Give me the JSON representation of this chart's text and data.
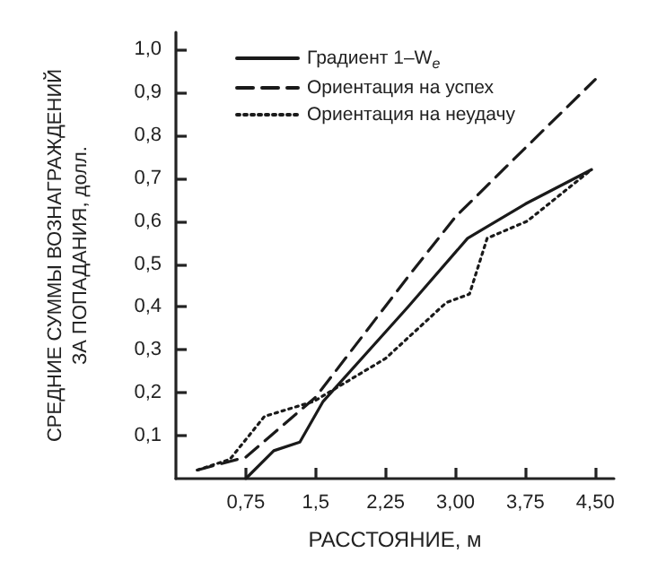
{
  "chart_data": {
    "type": "line",
    "xlabel": "РАССТОЯНИЕ, м",
    "ylabel": "СРЕДНИЕ СУММЫ ВОЗНАГРАЖДЕНИЙ\nЗА ПОПАДАНИЯ, долл.",
    "xlim": [
      0,
      4.7
    ],
    "ylim": [
      0,
      1.04
    ],
    "xticks": [
      {
        "value": 0.75,
        "label": "0,75"
      },
      {
        "value": 1.5,
        "label": "1,5"
      },
      {
        "value": 2.25,
        "label": "2,25"
      },
      {
        "value": 3,
        "label": "3,00"
      },
      {
        "value": 3.75,
        "label": "3,75"
      },
      {
        "value": 4.5,
        "label": "4,50"
      }
    ],
    "yticks": [
      {
        "value": 0.1,
        "label": "0,1"
      },
      {
        "value": 0.2,
        "label": "0,2"
      },
      {
        "value": 0.3,
        "label": "0,3"
      },
      {
        "value": 0.4,
        "label": "0,4"
      },
      {
        "value": 0.5,
        "label": "0,5"
      },
      {
        "value": 0.6,
        "label": "0,6"
      },
      {
        "value": 0.7,
        "label": "0,7"
      },
      {
        "value": 0.8,
        "label": "0,8"
      },
      {
        "value": 0.9,
        "label": "0,9"
      },
      {
        "value": 1.0,
        "label": "1,0"
      }
    ],
    "grid": false,
    "legend": "top left",
    "marker": "none",
    "series": [
      {
        "name": "Градиент 1–W$_{e}$",
        "color": "#1a1a1a",
        "line_style": "solid",
        "x": [
          0.75,
          1.05,
          1.33,
          1.58,
          2.49,
          3.13,
          3.75,
          4.46
        ],
        "values": [
          0,
          0.065,
          0.085,
          0.18,
          0.4,
          0.56,
          0.64,
          0.72
        ]
      },
      {
        "name": "Ориентация на успех",
        "color": "#1a1a1a",
        "line_style": "dashed",
        "x": [
          0.23,
          0.75,
          1.5,
          2.49,
          3.0,
          3.7,
          4.5
        ],
        "values": [
          0.02,
          0.05,
          0.19,
          0.47,
          0.61,
          0.76,
          0.93
        ]
      },
      {
        "name": "Ориентация на неудачу",
        "color": "#1a1a1a",
        "line_style": "dotted",
        "x": [
          0.23,
          0.58,
          0.95,
          1.48,
          2.25,
          2.9,
          3.15,
          3.34,
          3.77,
          4.46
        ],
        "values": [
          0.02,
          0.045,
          0.145,
          0.18,
          0.28,
          0.41,
          0.43,
          0.56,
          0.6,
          0.72
        ]
      }
    ]
  }
}
